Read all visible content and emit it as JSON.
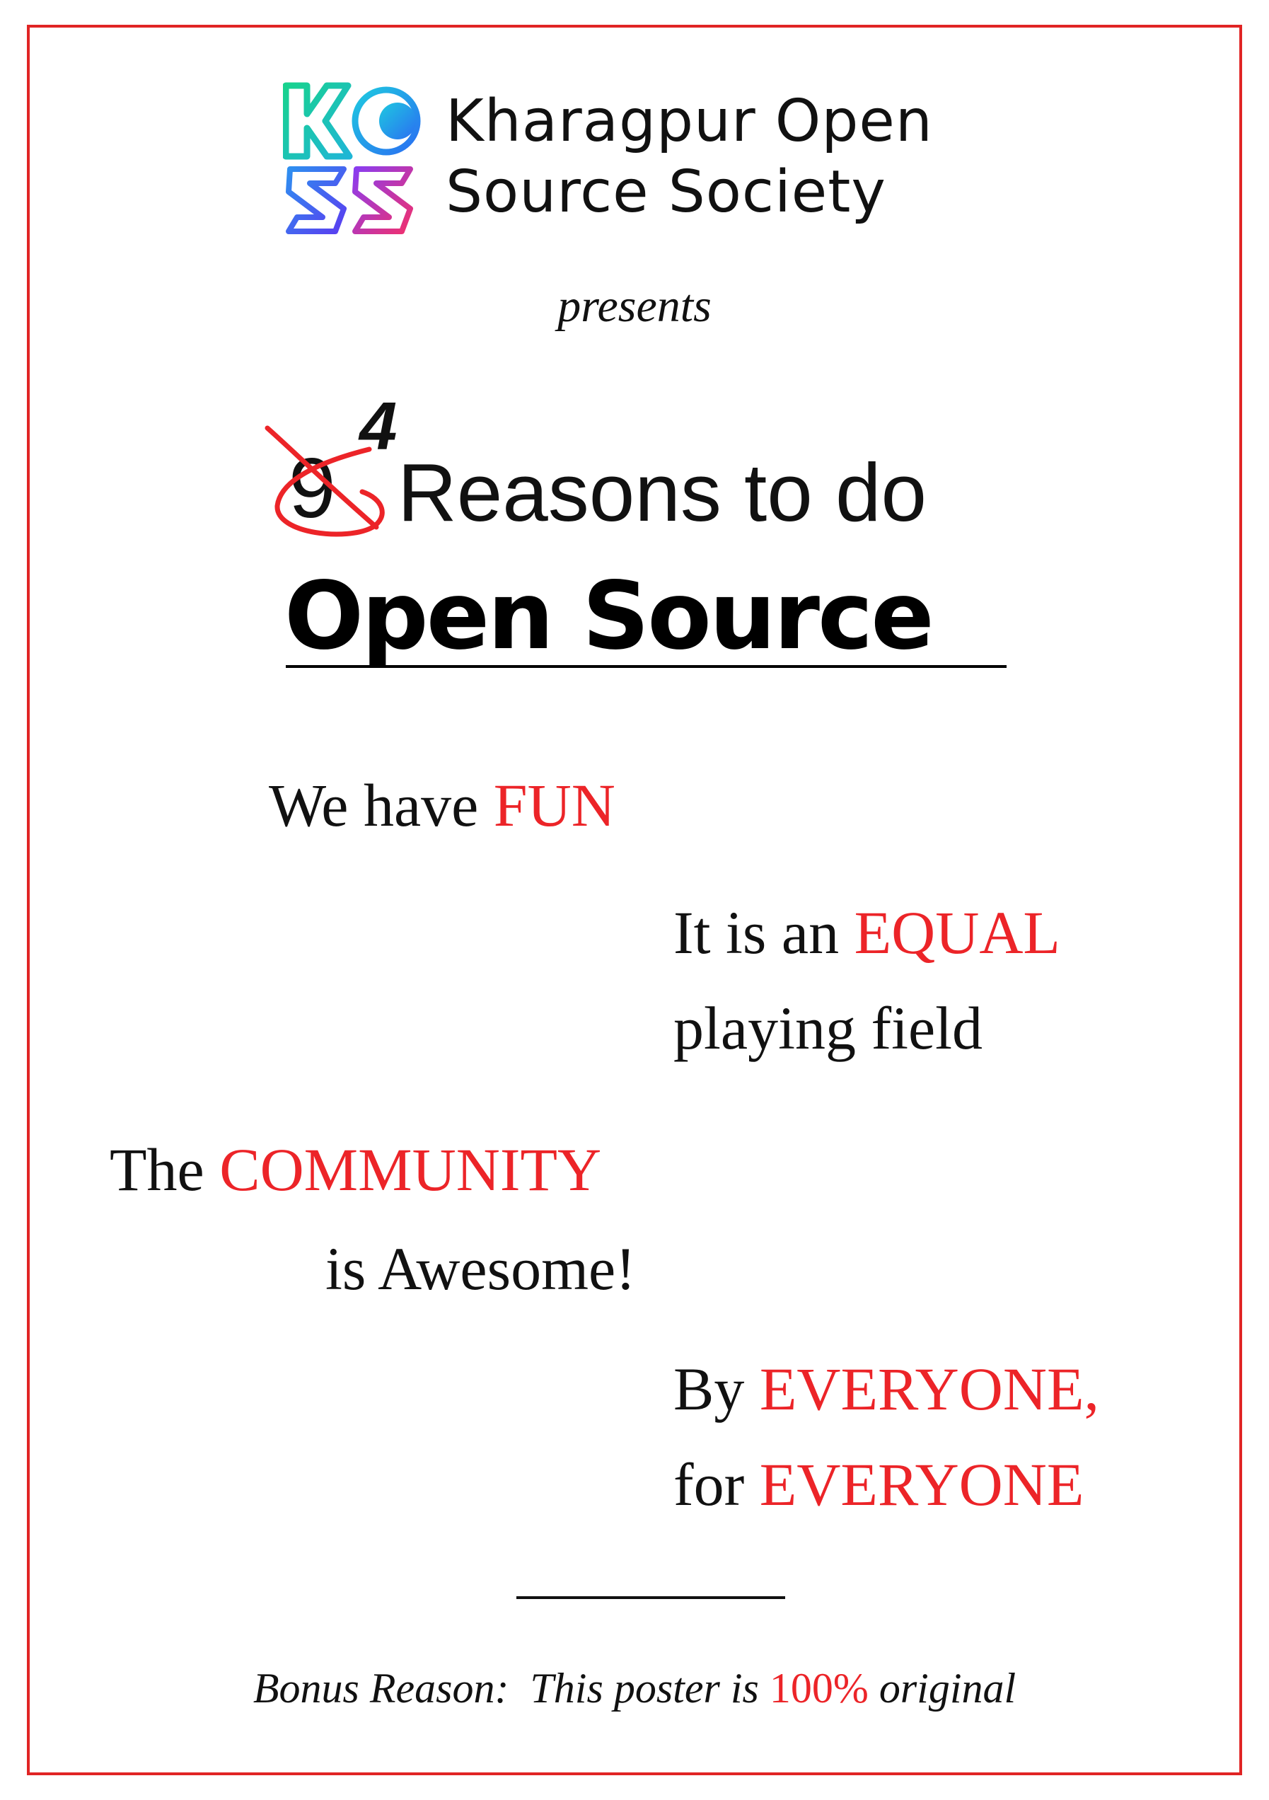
{
  "org": {
    "logo_text": "KOSS",
    "name_line1": "Kharagpur Open",
    "name_line2": "Source Society"
  },
  "presents": "presents",
  "title": {
    "struck_number": "9",
    "new_number": "4",
    "reasons": "Reasons to do",
    "main": "Open Source"
  },
  "reasons": [
    {
      "plain": "We have ",
      "highlight": "FUN"
    },
    {
      "plain": "It is an ",
      "highlight": "EQUAL",
      "line2": "playing field"
    },
    {
      "plain": "The ",
      "highlight": "COMMUNITY",
      "line2": "is Awesome!"
    },
    {
      "plain": "By ",
      "highlight": "EVERYONE,",
      "plain2": "for ",
      "highlight2": "EVERYONE"
    }
  ],
  "bonus": {
    "prefix": "Bonus Reason:  This poster is ",
    "highlight": "100%",
    "suffix": " original"
  },
  "colors": {
    "accent": "#ec2428",
    "frame": "#e02424",
    "text": "#111111"
  }
}
